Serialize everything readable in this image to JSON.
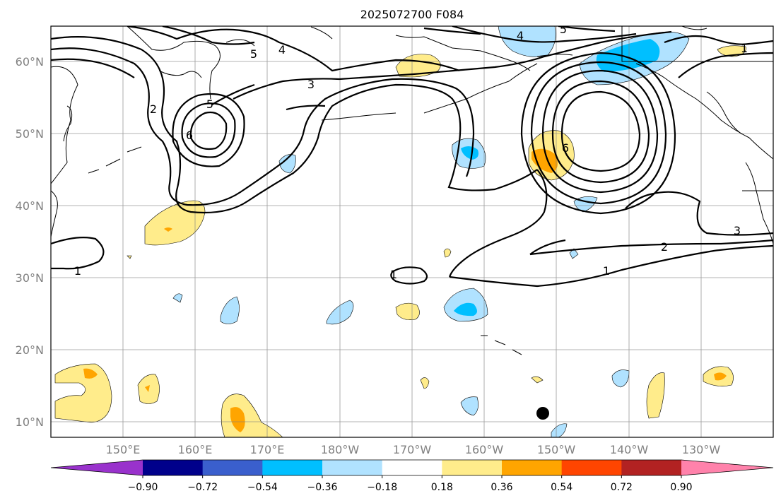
{
  "title": "2025072700 F084",
  "map": {
    "lat_ticks": [
      "60°N",
      "50°N",
      "40°N",
      "30°N",
      "20°N",
      "10°N"
    ],
    "lon_ticks": [
      "150°E",
      "160°E",
      "170°E",
      "180°W",
      "170°W",
      "160°W",
      "150°W",
      "140°W",
      "130°W"
    ],
    "contour_labels": [
      "1",
      "1",
      "1",
      "1",
      "2",
      "2",
      "3",
      "3",
      "4",
      "4",
      "5",
      "5",
      "5",
      "6",
      "6"
    ],
    "marker": "black-dot"
  },
  "colorbar": {
    "colors": [
      "#9932cc",
      "#00008b",
      "#3a5fcd",
      "#00bfff",
      "#b0e2ff",
      "#ffffff",
      "#ffec8b",
      "#ffa500",
      "#ff4500",
      "#b22222",
      "#ff82ab"
    ],
    "tick_labels": [
      "−0.90",
      "−0.72",
      "−0.54",
      "−0.36",
      "−0.18",
      "0.18",
      "0.36",
      "0.54",
      "0.72",
      "0.90"
    ]
  }
}
